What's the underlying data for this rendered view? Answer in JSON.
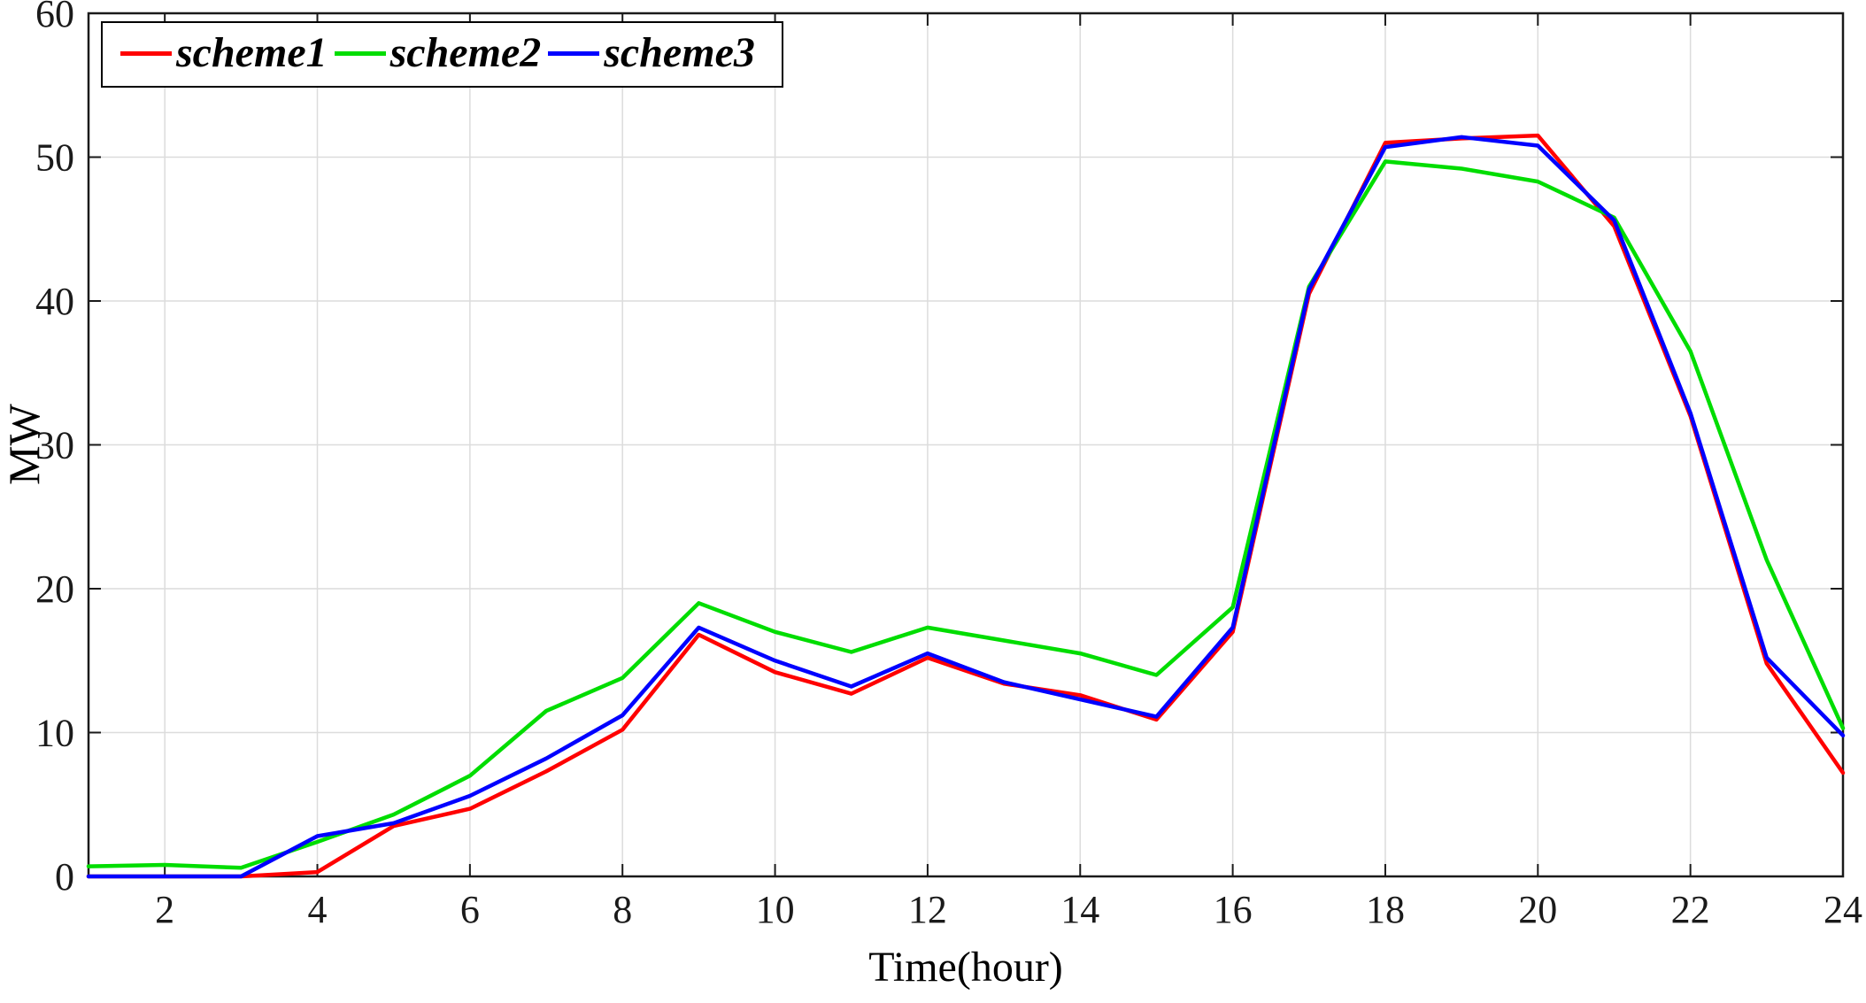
{
  "chart_data": {
    "type": "line",
    "title": "",
    "xlabel": "Time(hour)",
    "ylabel": "MW",
    "xlim": [
      1,
      24
    ],
    "ylim": [
      0,
      60
    ],
    "xticks": [
      2,
      4,
      6,
      8,
      10,
      12,
      14,
      16,
      18,
      20,
      22,
      24
    ],
    "yticks": [
      0,
      10,
      20,
      30,
      40,
      50,
      60
    ],
    "grid": true,
    "legend_position": "top-left",
    "frame_color": "#1a1a1a",
    "grid_color": "#dcdcdc",
    "x": [
      1,
      2,
      3,
      4,
      5,
      6,
      7,
      8,
      9,
      10,
      11,
      12,
      13,
      14,
      15,
      16,
      17,
      18,
      19,
      20,
      21,
      22,
      23,
      24
    ],
    "series": [
      {
        "name": "scheme1",
        "color": "#ff0000",
        "values": [
          0,
          0,
          0,
          0.3,
          3.5,
          4.7,
          7.3,
          10.2,
          16.8,
          14.2,
          12.7,
          15.2,
          13.4,
          12.6,
          10.9,
          17.0,
          40.5,
          51.0,
          51.3,
          51.5,
          45.2,
          32.0,
          14.8,
          7.2
        ]
      },
      {
        "name": "scheme2",
        "color": "#00dd00",
        "values": [
          0.7,
          0.8,
          0.6,
          2.4,
          4.3,
          7.0,
          11.5,
          13.8,
          19.0,
          17.0,
          15.6,
          17.3,
          16.4,
          15.5,
          14.0,
          18.7,
          41.0,
          49.7,
          49.2,
          48.3,
          45.8,
          36.5,
          22.0,
          10.3
        ]
      },
      {
        "name": "scheme3",
        "color": "#0000ff",
        "values": [
          0,
          0,
          0,
          2.8,
          3.7,
          5.6,
          8.2,
          11.2,
          17.3,
          15.0,
          13.2,
          15.5,
          13.5,
          12.3,
          11.1,
          17.3,
          40.8,
          50.7,
          51.4,
          50.8,
          45.6,
          32.2,
          15.2,
          9.8
        ]
      }
    ]
  }
}
